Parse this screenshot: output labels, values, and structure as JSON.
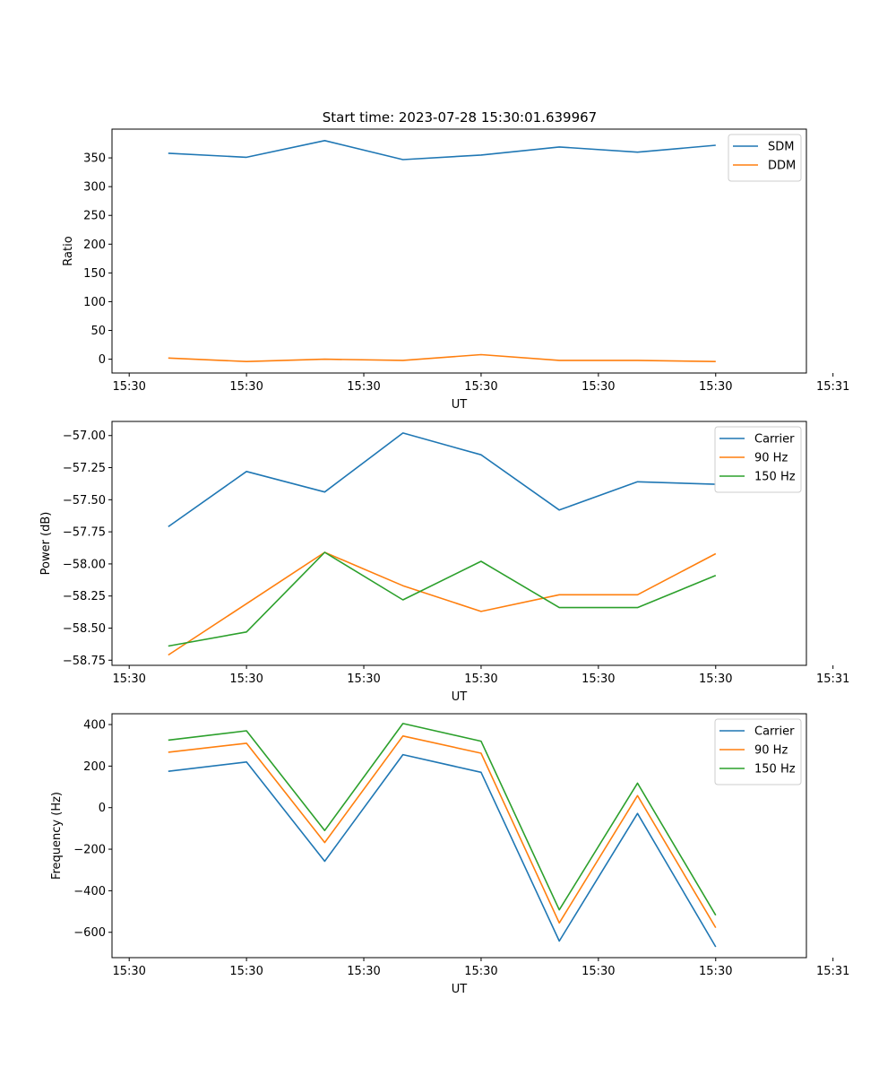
{
  "figure_title": "Start time: 2023-07-28 15:30:01.639967",
  "chart_data": [
    {
      "type": "line",
      "title": "Start time: 2023-07-28 15:30:01.639967",
      "xlabel": "UT",
      "ylabel": "Ratio",
      "x": [
        1,
        2,
        3,
        4,
        5,
        6,
        7,
        8
      ],
      "xlim": [
        0.28,
        9.16
      ],
      "xticks": [
        0.5,
        2,
        3.5,
        5,
        6.5,
        8,
        9.5
      ],
      "xtick_labels": [
        "15:30",
        "15:30",
        "15:30",
        "15:30",
        "15:30",
        "15:30",
        "15:31"
      ],
      "ylim": [
        -24,
        400
      ],
      "yticks": [
        0,
        50,
        100,
        150,
        200,
        250,
        300,
        350
      ],
      "ytick_labels": [
        "0",
        "50",
        "100",
        "150",
        "200",
        "250",
        "300",
        "350"
      ],
      "legend_position": "top-right",
      "series": [
        {
          "name": "SDM",
          "color": "#1f77b4",
          "values": [
            358,
            351,
            380,
            347,
            355,
            369,
            360,
            372
          ]
        },
        {
          "name": "DDM",
          "color": "#ff7f0e",
          "values": [
            2,
            -4,
            0,
            -2,
            8,
            -2,
            -2,
            -4
          ]
        }
      ]
    },
    {
      "type": "line",
      "title": "",
      "xlabel": "UT",
      "ylabel": "Power (dB)",
      "x": [
        1,
        2,
        3,
        4,
        5,
        6,
        7,
        8
      ],
      "xlim": [
        0.28,
        9.16
      ],
      "xticks": [
        0.5,
        2,
        3.5,
        5,
        6.5,
        8,
        9.5
      ],
      "xtick_labels": [
        "15:30",
        "15:30",
        "15:30",
        "15:30",
        "15:30",
        "15:30",
        "15:31"
      ],
      "ylim": [
        -58.79,
        -56.89
      ],
      "yticks": [
        -58.75,
        -58.5,
        -58.25,
        -58.0,
        -57.75,
        -57.5,
        -57.25,
        -57.0
      ],
      "ytick_labels": [
        "−58.75",
        "−58.50",
        "−58.25",
        "−58.00",
        "−57.75",
        "−57.50",
        "−57.25",
        "−57.00"
      ],
      "legend_position": "top-right",
      "series": [
        {
          "name": "Carrier",
          "color": "#1f77b4",
          "values": [
            -57.71,
            -57.28,
            -57.44,
            -56.98,
            -57.15,
            -57.58,
            -57.36,
            -57.38
          ]
        },
        {
          "name": "90 Hz",
          "color": "#ff7f0e",
          "values": [
            -58.71,
            -58.31,
            -57.91,
            -58.17,
            -58.37,
            -58.24,
            -58.24,
            -57.92
          ]
        },
        {
          "name": "150 Hz",
          "color": "#2ca02c",
          "values": [
            -58.64,
            -58.53,
            -57.91,
            -58.28,
            -57.98,
            -58.34,
            -58.34,
            -58.09
          ]
        }
      ]
    },
    {
      "type": "line",
      "title": "",
      "xlabel": "UT",
      "ylabel": "Frequency (Hz)",
      "x": [
        1,
        2,
        3,
        4,
        5,
        6,
        7,
        8
      ],
      "xlim": [
        0.28,
        9.16
      ],
      "xticks": [
        0.5,
        2,
        3.5,
        5,
        6.5,
        8,
        9.5
      ],
      "xtick_labels": [
        "15:30",
        "15:30",
        "15:30",
        "15:30",
        "15:30",
        "15:30",
        "15:31"
      ],
      "ylim": [
        -722,
        452
      ],
      "yticks": [
        -600,
        -400,
        -200,
        0,
        200,
        400
      ],
      "ytick_labels": [
        "−600",
        "−400",
        "−200",
        "0",
        "200",
        "400"
      ],
      "legend_position": "top-right",
      "series": [
        {
          "name": "Carrier",
          "color": "#1f77b4",
          "values": [
            175,
            220,
            -258,
            255,
            170,
            -642,
            -28,
            -670
          ]
        },
        {
          "name": "90 Hz",
          "color": "#ff7f0e",
          "values": [
            267,
            310,
            -168,
            345,
            262,
            -555,
            58,
            -578
          ]
        },
        {
          "name": "150 Hz",
          "color": "#2ca02c",
          "values": [
            325,
            370,
            -110,
            405,
            320,
            -492,
            118,
            -518
          ]
        }
      ]
    }
  ]
}
